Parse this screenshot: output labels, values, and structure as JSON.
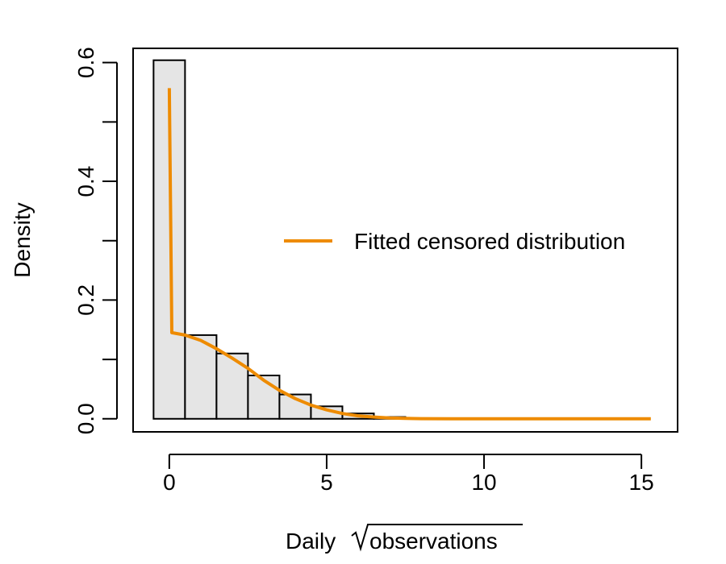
{
  "chart_data": {
    "type": "bar",
    "xlabel_prefix": "Daily",
    "xlabel_sqrt": "observations",
    "ylabel": "Density",
    "xlim": [
      -1.15,
      16.15
    ],
    "ylim": [
      -0.022,
      0.624
    ],
    "x_ticks": [
      0,
      5,
      10,
      15
    ],
    "y_ticks": [
      0.0,
      0.1,
      0.2,
      0.3,
      0.4,
      0.5,
      0.6
    ],
    "y_tick_labels": [
      {
        "value": 0.0,
        "label": "0.0"
      },
      {
        "value": 0.2,
        "label": "0.2"
      },
      {
        "value": 0.4,
        "label": "0.4"
      },
      {
        "value": 0.6,
        "label": "0.6"
      }
    ],
    "histogram": {
      "bar_width": 1,
      "bars": [
        {
          "x": 0,
          "value": 0.604
        },
        {
          "x": 1,
          "value": 0.141
        },
        {
          "x": 2,
          "value": 0.11
        },
        {
          "x": 3,
          "value": 0.073
        },
        {
          "x": 4,
          "value": 0.041
        },
        {
          "x": 5,
          "value": 0.021
        },
        {
          "x": 6,
          "value": 0.009
        },
        {
          "x": 7,
          "value": 0.003
        },
        {
          "x": 8,
          "value": 0.001
        },
        {
          "x": 9,
          "value": 0.0
        },
        {
          "x": 10,
          "value": 0.0
        },
        {
          "x": 11,
          "value": 0.0
        },
        {
          "x": 12,
          "value": 0.0
        },
        {
          "x": 13,
          "value": 0.0
        },
        {
          "x": 14,
          "value": 0.0
        },
        {
          "x": 15,
          "value": 0.0
        }
      ],
      "fill": "#e5e5e5",
      "stroke": "#000000"
    },
    "series": [
      {
        "name": "Fitted censored distribution",
        "color": "#ee8b00",
        "points": [
          [
            0.0,
            0.557
          ],
          [
            0.08,
            0.145
          ],
          [
            0.5,
            0.141
          ],
          [
            1.0,
            0.132
          ],
          [
            1.5,
            0.118
          ],
          [
            2.0,
            0.102
          ],
          [
            2.5,
            0.085
          ],
          [
            3.0,
            0.065
          ],
          [
            3.5,
            0.048
          ],
          [
            4.0,
            0.034
          ],
          [
            4.5,
            0.023
          ],
          [
            5.0,
            0.015
          ],
          [
            5.5,
            0.009
          ],
          [
            6.0,
            0.005
          ],
          [
            6.5,
            0.003
          ],
          [
            7.0,
            0.0015
          ],
          [
            7.5,
            0.0007
          ],
          [
            8.0,
            0.0003
          ],
          [
            9.0,
            0.0001
          ],
          [
            10.0,
            0.0
          ],
          [
            12.0,
            0.0
          ],
          [
            15.3,
            0.0
          ]
        ]
      }
    ],
    "legend_position": "right"
  }
}
